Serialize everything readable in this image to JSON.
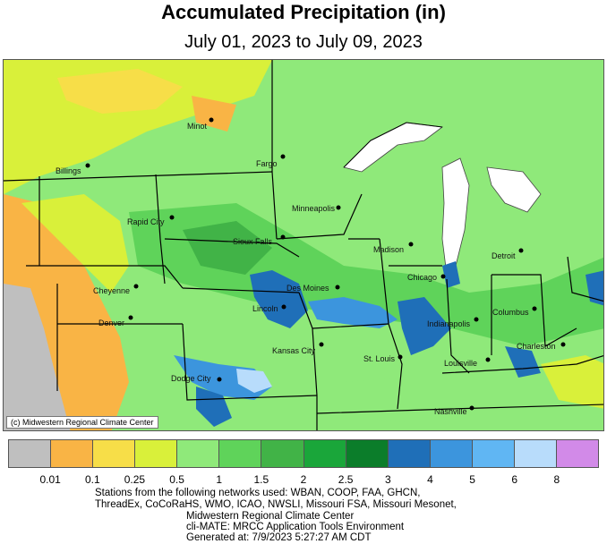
{
  "header": {
    "title": "Accumulated Precipitation (in)",
    "subtitle": "July 01, 2023 to July 09, 2023"
  },
  "map": {
    "copyright": "(c) Midwestern Regional Climate Center",
    "cities": [
      {
        "name": "Minot"
      },
      {
        "name": "Billings"
      },
      {
        "name": "Fargo"
      },
      {
        "name": "Rapid City"
      },
      {
        "name": "Minneapolis"
      },
      {
        "name": "Sioux Falls"
      },
      {
        "name": "Madison"
      },
      {
        "name": "Detroit"
      },
      {
        "name": "Cheyenne"
      },
      {
        "name": "Des Moines"
      },
      {
        "name": "Chicago"
      },
      {
        "name": "Lincoln"
      },
      {
        "name": "Denver"
      },
      {
        "name": "Indianapolis"
      },
      {
        "name": "Columbus"
      },
      {
        "name": "Kansas City"
      },
      {
        "name": "St. Louis"
      },
      {
        "name": "Charleston"
      },
      {
        "name": "Louisville"
      },
      {
        "name": "Dodge City"
      },
      {
        "name": "Nashville"
      }
    ]
  },
  "legend": {
    "colors": [
      "#bfbfbf",
      "#f9b445",
      "#f7de48",
      "#d9f03a",
      "#8fe97a",
      "#5fd35a",
      "#41b347",
      "#1aa63a",
      "#0b7d2a",
      "#1f6fb8",
      "#3c95dd",
      "#60b6f3",
      "#b8dcfb",
      "#d28ae8"
    ],
    "ticks": [
      "0.01",
      "0.1",
      "0.25",
      "0.5",
      "1",
      "1.5",
      "2",
      "2.5",
      "3",
      "4",
      "5",
      "6",
      "8"
    ]
  },
  "credits": {
    "line1": "Stations from the following networks used: WBAN, COOP, FAA, GHCN,",
    "line2": "ThreadEx, CoCoRaHS, WMO, ICAO, NWSLI, Missouri FSA, Missouri Mesonet,",
    "line3": "Midwestern Regional Climate Center",
    "line4": "cli-MATE: MRCC Application Tools Environment",
    "line5": "Generated at: 7/9/2023 5:27:27 AM CDT"
  }
}
